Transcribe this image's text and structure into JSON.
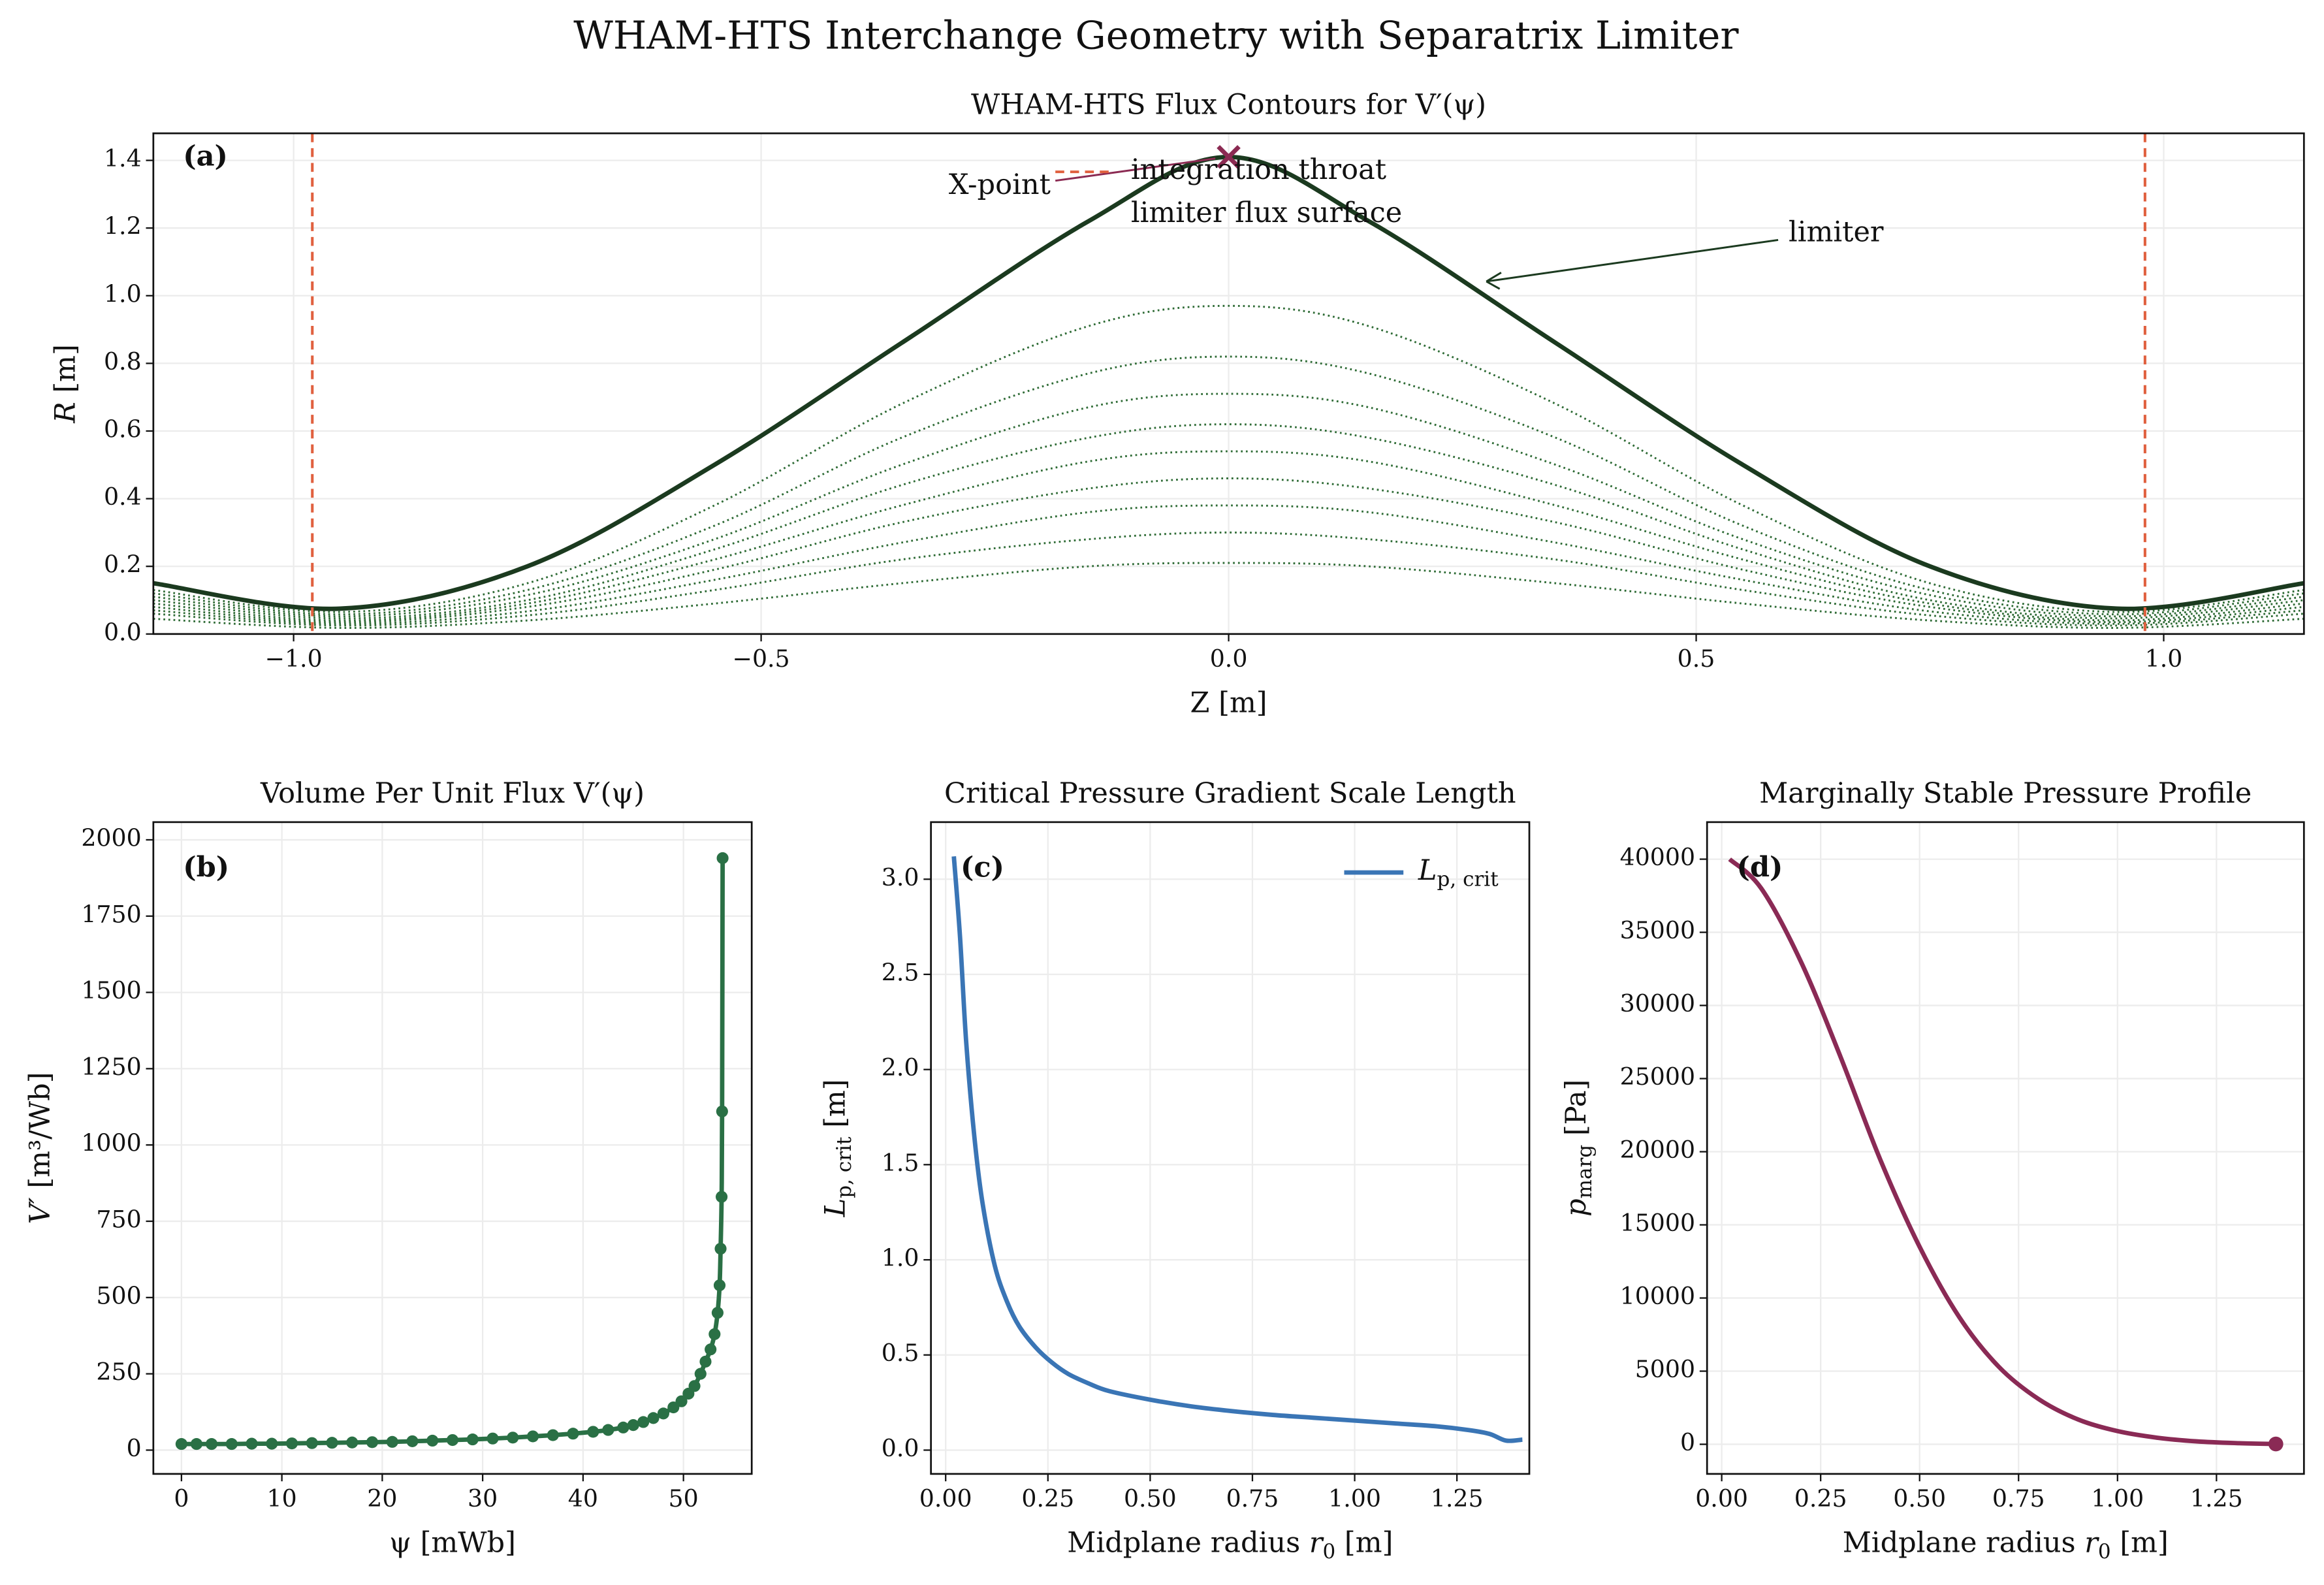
{
  "title": "WHAM-HTS Interchange Geometry with Separatrix Limiter",
  "chart_data": [
    {
      "type": "contour",
      "title": "WHAM-HTS Flux Contours for V′(ψ)",
      "panel_label": "(a)",
      "xlabel": {
        "main": "Z",
        "unit": " [m]"
      },
      "ylabel": {
        "main": "R",
        "unit": " [m]"
      },
      "xlim": [
        -1.15,
        1.15
      ],
      "ylim": [
        0,
        1.48
      ],
      "grid": true,
      "xticks": [
        {
          "value": -1,
          "label": "−1.0"
        },
        {
          "value": -0.5,
          "label": "−0.5"
        },
        {
          "value": 0,
          "label": "0.0"
        },
        {
          "value": 0.5,
          "label": "0.5"
        },
        {
          "value": 1,
          "label": "1.0"
        }
      ],
      "yticks": [
        {
          "value": 0,
          "label": "0.0"
        },
        {
          "value": 0.2,
          "label": "0.2"
        },
        {
          "value": 0.4,
          "label": "0.4"
        },
        {
          "value": 0.6,
          "label": "0.6"
        },
        {
          "value": 0.8,
          "label": "0.8"
        },
        {
          "value": 1,
          "label": "1.0"
        },
        {
          "value": 1.2,
          "label": "1.2"
        },
        {
          "value": 1.4,
          "label": "1.4"
        }
      ],
      "x": [
        -1.15,
        -0.95,
        -0.75,
        -0.55,
        -0.35,
        -0.15,
        0,
        0.15,
        0.35,
        0.55,
        0.75,
        0.95,
        1.15
      ],
      "series": [
        {
          "name": "limiter flux surface",
          "color": "#1b3a1f",
          "values": [
            0.15,
            0.075,
            0.2,
            0.5,
            0.86,
            1.22,
            1.41,
            1.22,
            0.86,
            0.5,
            0.2,
            0.075,
            0.15
          ]
        },
        {
          "color": "#2e6b35",
          "values": [
            0.13,
            0.065,
            0.15,
            0.38,
            0.68,
            0.91,
            0.97,
            0.91,
            0.68,
            0.38,
            0.15,
            0.065,
            0.13
          ]
        },
        {
          "color": "#2e6b35",
          "values": [
            0.12,
            0.058,
            0.13,
            0.32,
            0.58,
            0.77,
            0.82,
            0.77,
            0.58,
            0.32,
            0.13,
            0.058,
            0.12
          ]
        },
        {
          "color": "#2e6b35",
          "values": [
            0.11,
            0.052,
            0.115,
            0.28,
            0.5,
            0.67,
            0.71,
            0.67,
            0.5,
            0.28,
            0.115,
            0.052,
            0.11
          ]
        },
        {
          "color": "#2e6b35",
          "values": [
            0.1,
            0.046,
            0.1,
            0.25,
            0.44,
            0.58,
            0.62,
            0.58,
            0.44,
            0.25,
            0.1,
            0.046,
            0.1
          ]
        },
        {
          "color": "#2e6b35",
          "values": [
            0.09,
            0.04,
            0.09,
            0.22,
            0.38,
            0.51,
            0.54,
            0.51,
            0.38,
            0.22,
            0.09,
            0.04,
            0.09
          ]
        },
        {
          "color": "#2e6b35",
          "values": [
            0.08,
            0.035,
            0.08,
            0.19,
            0.33,
            0.43,
            0.46,
            0.43,
            0.33,
            0.19,
            0.08,
            0.035,
            0.08
          ]
        },
        {
          "color": "#2e6b35",
          "values": [
            0.07,
            0.03,
            0.067,
            0.16,
            0.27,
            0.36,
            0.38,
            0.36,
            0.27,
            0.16,
            0.067,
            0.03,
            0.07
          ]
        },
        {
          "color": "#2e6b35",
          "values": [
            0.06,
            0.025,
            0.055,
            0.13,
            0.22,
            0.28,
            0.3,
            0.28,
            0.22,
            0.13,
            0.055,
            0.025,
            0.06
          ]
        },
        {
          "color": "#2e6b35",
          "values": [
            0.045,
            0.018,
            0.04,
            0.09,
            0.15,
            0.2,
            0.21,
            0.2,
            0.15,
            0.09,
            0.04,
            0.018,
            0.045
          ]
        }
      ],
      "vlines": {
        "name": "integration throat",
        "color": "#e0603f",
        "values": [
          -0.98,
          0.98
        ]
      },
      "xpoint": {
        "label": "X-point",
        "color": "#8b2a52",
        "x": 0,
        "y": 1.41
      },
      "annotation": "limiter"
    },
    {
      "type": "line",
      "title": "Volume Per Unit Flux V′(ψ)",
      "panel_label": "(b)",
      "xlabel": {
        "main": "ψ",
        "unit": " [mWb]"
      },
      "ylabel": {
        "main": "V′",
        "unit": " [m³/Wb]"
      },
      "xlim": [
        -2.8,
        56.8
      ],
      "ylim": [
        -78,
        2058
      ],
      "grid": true,
      "markers": true,
      "color": "#2a7045",
      "xticks": [
        0,
        10,
        20,
        30,
        40,
        50
      ],
      "yticks": [
        0,
        250,
        500,
        750,
        1000,
        1250,
        1500,
        1750,
        2000
      ],
      "x": [
        0,
        1.5,
        3,
        5,
        7,
        9,
        11,
        13,
        15,
        17,
        19,
        21,
        23,
        25,
        27,
        29,
        31,
        33,
        35,
        37,
        39,
        41,
        42.5,
        44,
        45,
        46,
        47,
        48,
        49,
        49.8,
        50.5,
        51.1,
        51.7,
        52.2,
        52.7,
        53.1,
        53.4,
        53.6,
        53.7,
        53.8,
        53.85,
        53.9
      ],
      "values": [
        20,
        20,
        20,
        20,
        21,
        21,
        22,
        23,
        24,
        25,
        26,
        27,
        29,
        31,
        33,
        35,
        38,
        41,
        45,
        49,
        54,
        60,
        66,
        74,
        82,
        92,
        105,
        120,
        140,
        160,
        185,
        210,
        250,
        290,
        330,
        380,
        450,
        540,
        660,
        830,
        1110,
        1940
      ]
    },
    {
      "type": "line",
      "title": "Critical Pressure Gradient Scale Length",
      "panel_label": "(c)",
      "xlabel": {
        "main": "Midplane radius ",
        "var": "r",
        "sub": "0",
        "unit": " [m]"
      },
      "ylabel": {
        "main": "L",
        "sub": "p, crit",
        "unit": " [m]"
      },
      "xlim": [
        -0.036,
        1.427
      ],
      "ylim": [
        -0.125,
        3.3
      ],
      "grid": true,
      "color": "#3a75b5",
      "legend": {
        "main": "L",
        "sub": "p, crit"
      },
      "xticks": [
        {
          "value": 0,
          "label": "0.00"
        },
        {
          "value": 0.25,
          "label": "0.25"
        },
        {
          "value": 0.5,
          "label": "0.50"
        },
        {
          "value": 0.75,
          "label": "0.75"
        },
        {
          "value": 1,
          "label": "1.00"
        },
        {
          "value": 1.25,
          "label": "1.25"
        }
      ],
      "yticks": [
        {
          "value": 0,
          "label": "0.0"
        },
        {
          "value": 0.5,
          "label": "0.5"
        },
        {
          "value": 1,
          "label": "1.0"
        },
        {
          "value": 1.5,
          "label": "1.5"
        },
        {
          "value": 2,
          "label": "2.0"
        },
        {
          "value": 2.5,
          "label": "2.5"
        },
        {
          "value": 3,
          "label": "3.0"
        }
      ],
      "x": [
        0.02,
        0.035,
        0.05,
        0.07,
        0.09,
        0.12,
        0.15,
        0.18,
        0.22,
        0.26,
        0.3,
        0.35,
        0.4,
        0.5,
        0.6,
        0.7,
        0.8,
        0.9,
        1.0,
        1.1,
        1.2,
        1.28,
        1.33,
        1.37,
        1.41
      ],
      "values": [
        3.12,
        2.7,
        2.15,
        1.65,
        1.3,
        0.97,
        0.78,
        0.65,
        0.54,
        0.46,
        0.4,
        0.35,
        0.31,
        0.265,
        0.23,
        0.205,
        0.185,
        0.17,
        0.155,
        0.14,
        0.125,
        0.105,
        0.085,
        0.05,
        0.055
      ]
    },
    {
      "type": "line",
      "title": "Marginally Stable Pressure Profile",
      "panel_label": "(d)",
      "xlabel": {
        "main": "Midplane radius ",
        "var": "r",
        "sub": "0",
        "unit": " [m]"
      },
      "ylabel": {
        "main": "p",
        "sub": "marg",
        "unit": " [Pa]"
      },
      "xlim": [
        -0.037,
        1.471
      ],
      "ylim": [
        -2025,
        42532
      ],
      "grid": true,
      "end_marker": true,
      "color": "#8a2a55",
      "xticks": [
        {
          "value": 0,
          "label": "0.00"
        },
        {
          "value": 0.25,
          "label": "0.25"
        },
        {
          "value": 0.5,
          "label": "0.50"
        },
        {
          "value": 0.75,
          "label": "0.75"
        },
        {
          "value": 1,
          "label": "1.00"
        },
        {
          "value": 1.25,
          "label": "1.25"
        }
      ],
      "yticks": [
        0,
        5000,
        10000,
        15000,
        20000,
        25000,
        30000,
        35000,
        40000
      ],
      "x": [
        0.02,
        0.1,
        0.2,
        0.3,
        0.4,
        0.5,
        0.6,
        0.7,
        0.8,
        0.9,
        1.0,
        1.1,
        1.2,
        1.3,
        1.4
      ],
      "values": [
        40000,
        38000,
        33000,
        26500,
        19500,
        13500,
        8700,
        5300,
        3100,
        1700,
        900,
        450,
        200,
        80,
        20
      ]
    }
  ]
}
